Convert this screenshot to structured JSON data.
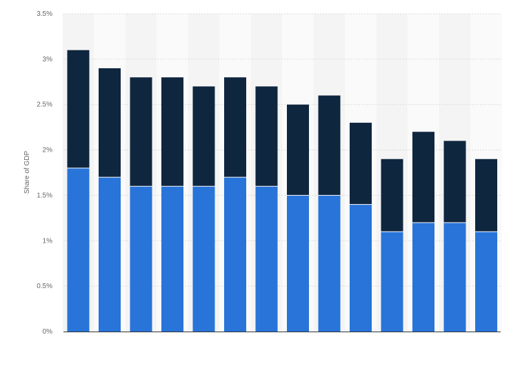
{
  "chart_data": {
    "type": "bar",
    "stacked": true,
    "title": "",
    "xlabel": "",
    "ylabel": "Share of GDP",
    "ylim": [
      0,
      3.5
    ],
    "yticks": [
      "0%",
      "0.5%",
      "1%",
      "1.5%",
      "2%",
      "2.5%",
      "3%",
      "3.5%"
    ],
    "categories": [
      "",
      "",
      "",
      "",
      "",
      "",
      "",
      "",
      "",
      "",
      "",
      "",
      "",
      ""
    ],
    "grid": true,
    "series": [
      {
        "color": "#2874d9",
        "values": [
          1.8,
          1.7,
          1.6,
          1.6,
          1.6,
          1.7,
          1.6,
          1.5,
          1.5,
          1.4,
          1.1,
          1.2,
          1.2,
          1.1
        ]
      },
      {
        "color": "#0f263f",
        "values": [
          1.3,
          1.2,
          1.2,
          1.2,
          1.1,
          1.1,
          1.1,
          1.0,
          1.1,
          0.9,
          0.8,
          1.0,
          0.9,
          0.8
        ]
      }
    ]
  }
}
